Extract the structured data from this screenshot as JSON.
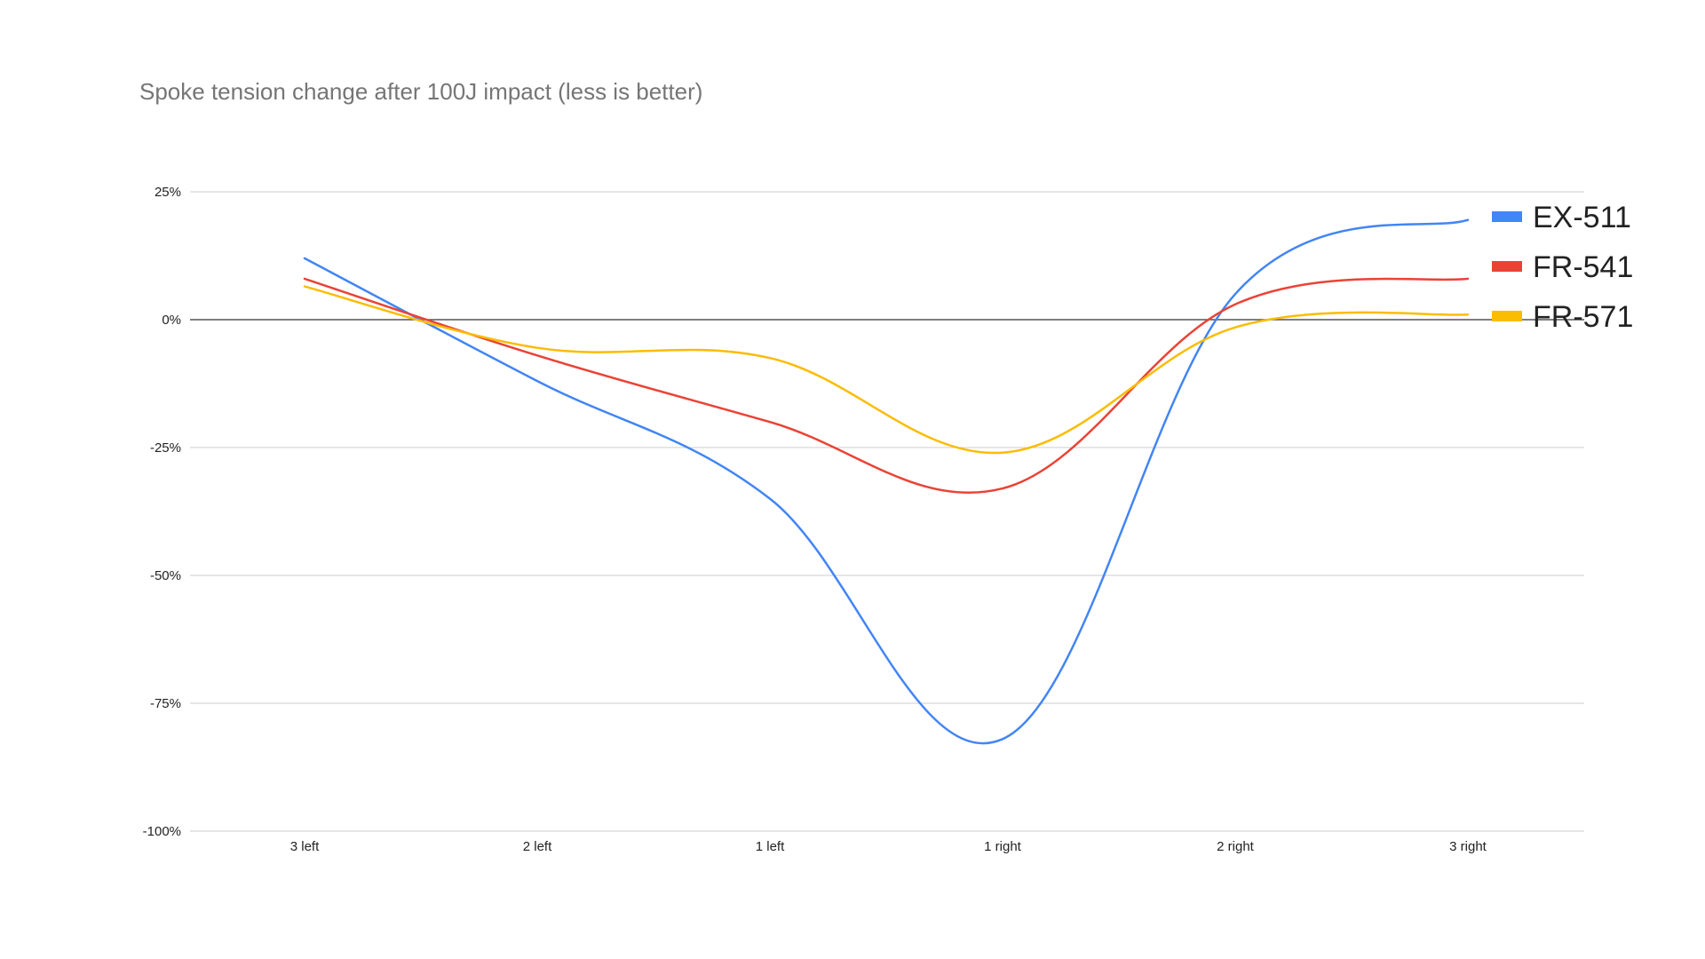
{
  "chart_data": {
    "type": "line",
    "title": "Spoke tension change after 100J impact (less is better)",
    "xlabel": "",
    "ylabel": "",
    "categories": [
      "3 left",
      "2 left",
      "1 left",
      "1 right",
      "2 right",
      "3 right"
    ],
    "y_ticks": [
      25,
      0,
      -25,
      -50,
      -75,
      -100
    ],
    "y_tick_labels": [
      "25%",
      "0%",
      "-25%",
      "-50%",
      "-75%",
      "-100%"
    ],
    "ylim": [
      -100,
      25
    ],
    "grid": true,
    "smooth": true,
    "legend_position": "right",
    "series": [
      {
        "name": "EX-511",
        "color": "#4285f4",
        "values": [
          12,
          -12,
          -35,
          -82,
          5,
          19.5
        ]
      },
      {
        "name": "FR-541",
        "color": "#ea4335",
        "values": [
          8,
          -7,
          -20,
          -33,
          3,
          8
        ]
      },
      {
        "name": "FR-571",
        "color": "#fbbc04",
        "values": [
          6.5,
          -5.5,
          -7.5,
          -26,
          -1.5,
          1
        ]
      }
    ]
  }
}
